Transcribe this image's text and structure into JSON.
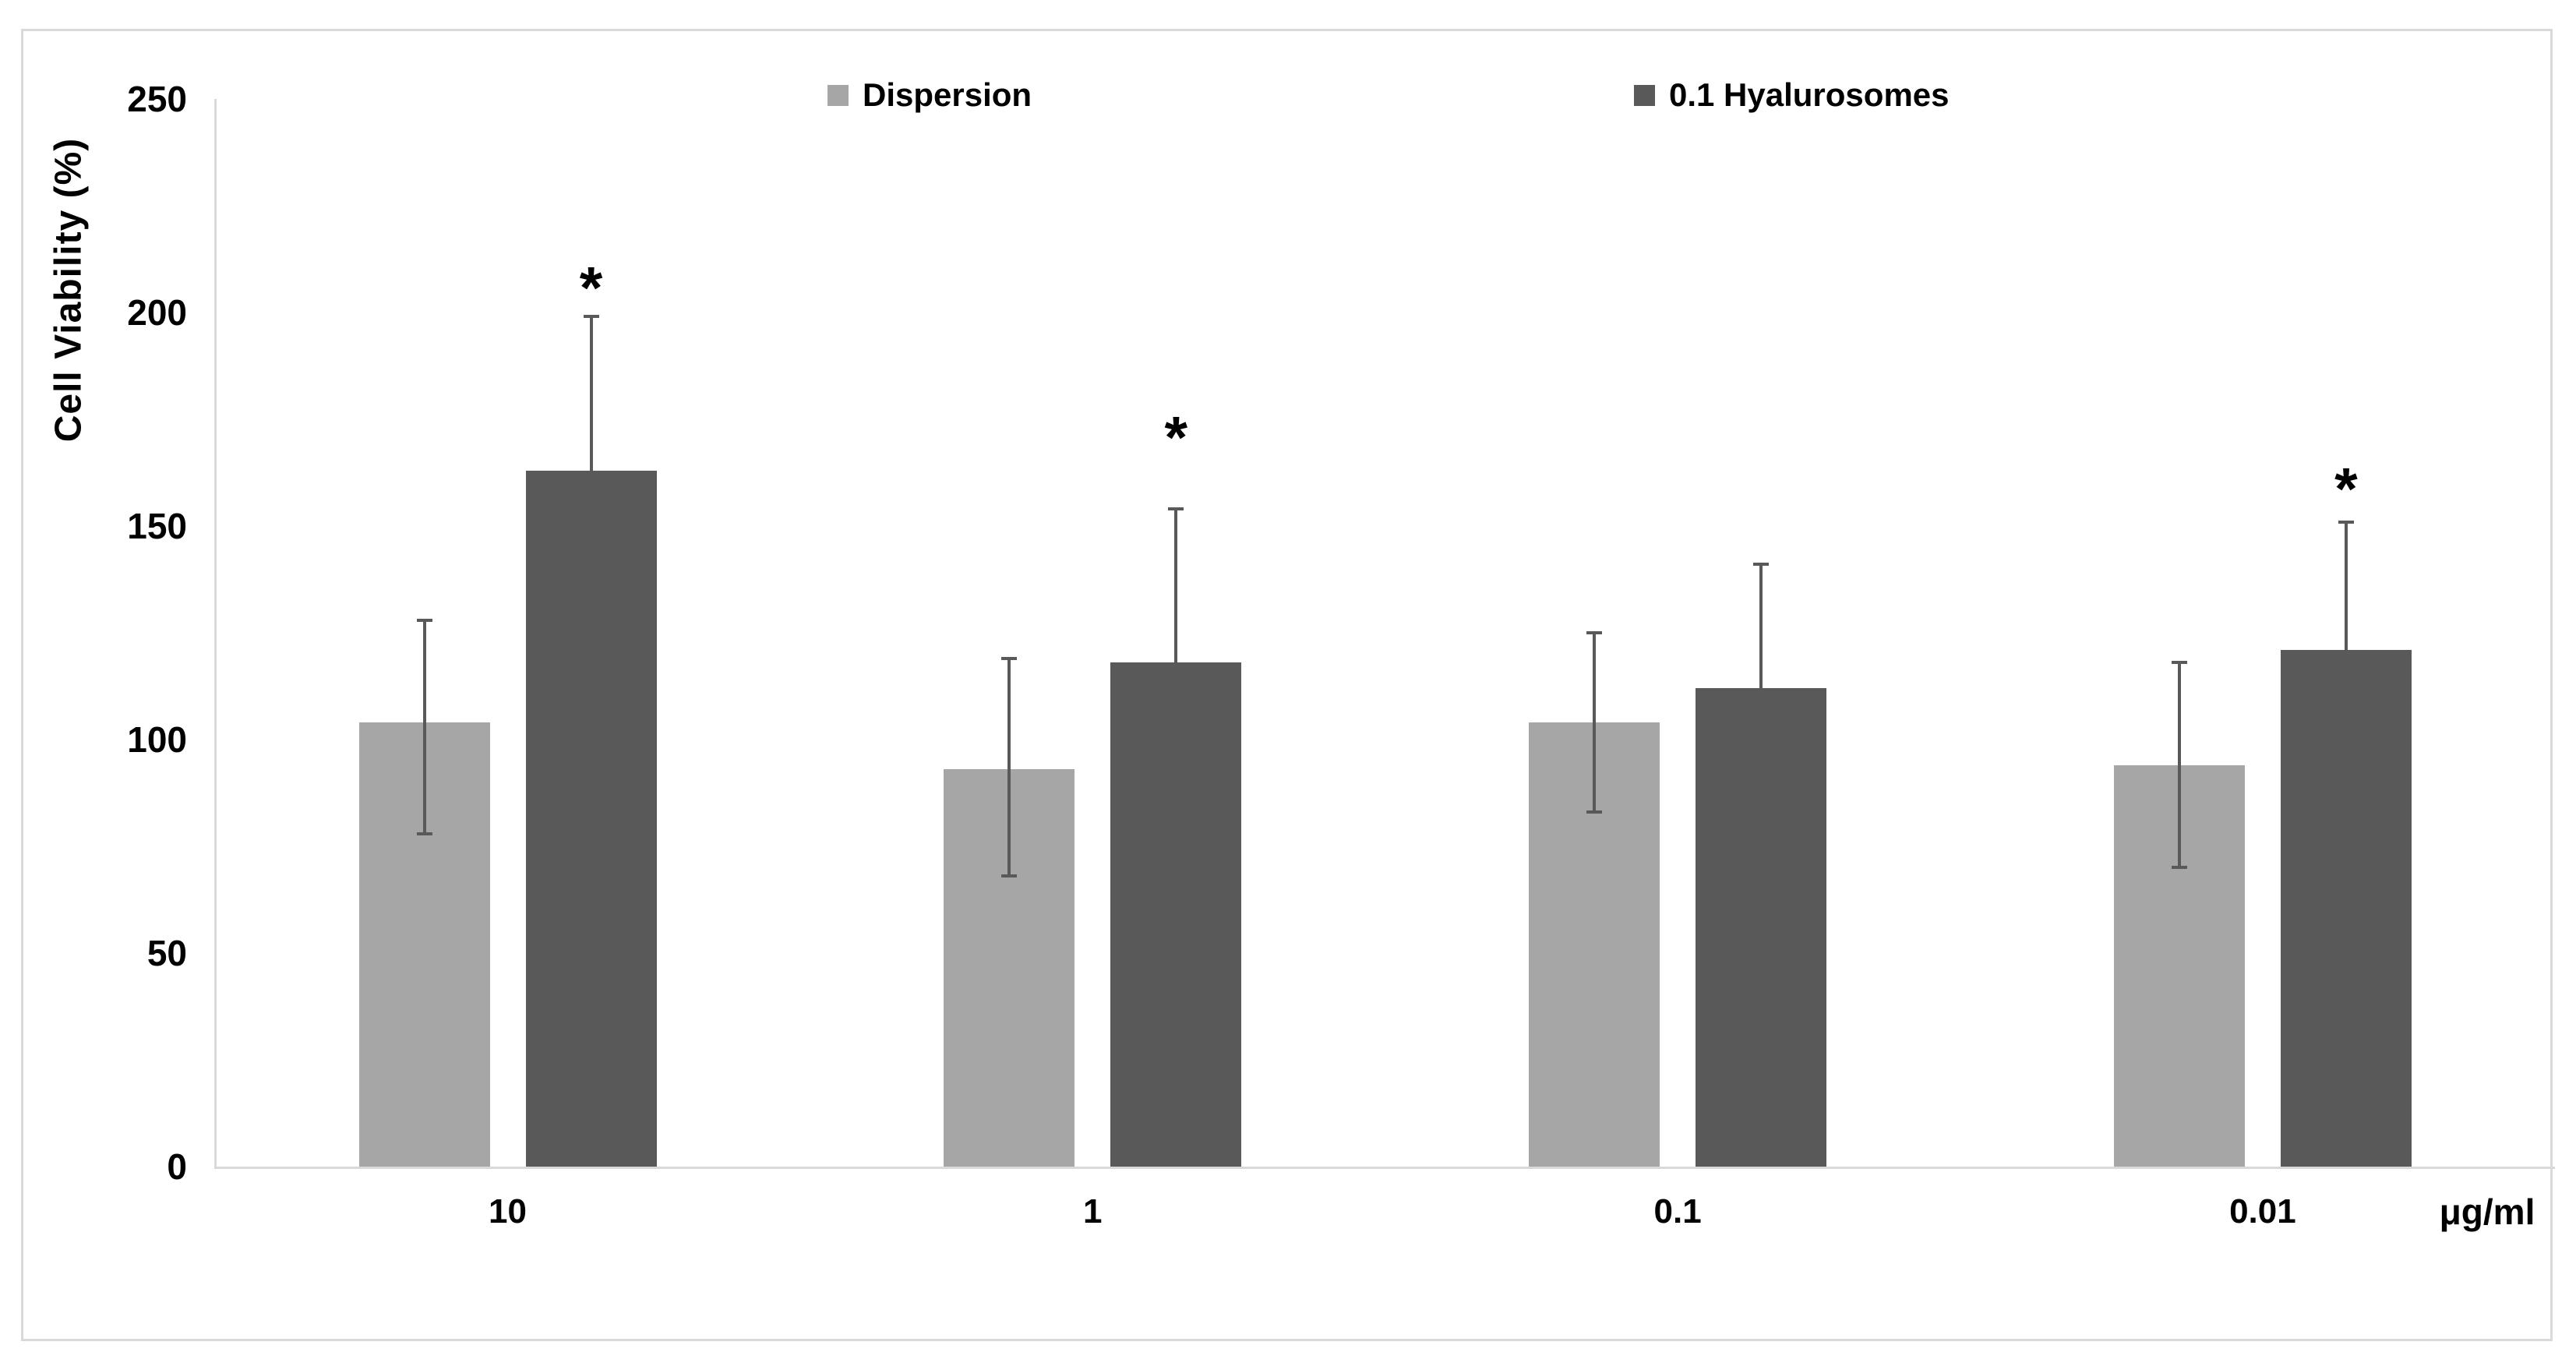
{
  "figure": {
    "background": "#ffffff",
    "border_color": "#d9d9d9",
    "axis_color": "#d9d9d9",
    "text_color": "#000000"
  },
  "legend": {
    "position": "top",
    "items": [
      {
        "label": "Dispersion",
        "color": "#a6a6a6"
      },
      {
        "label": "0.1 Hyalurosomes",
        "color": "#595959"
      }
    ]
  },
  "chart_data": {
    "type": "bar",
    "title": "",
    "ylabel": "Cell Viability (%)",
    "xlabel": "μg/ml",
    "ylim": [
      0,
      250
    ],
    "y_ticks": [
      0,
      50,
      100,
      150,
      200,
      250
    ],
    "grid": false,
    "legend_position": "top",
    "categories": [
      "10",
      "1",
      "0.1",
      "0.01"
    ],
    "series": [
      {
        "name": "Dispersion",
        "color": "#a6a6a6",
        "values": [
          104,
          93,
          104,
          94
        ],
        "error_plus": [
          24,
          26,
          21,
          24
        ],
        "error_minus": [
          26,
          25,
          21,
          24
        ],
        "significant": [
          false,
          false,
          false,
          false
        ],
        "marker_values": [
          null,
          null,
          null,
          null
        ]
      },
      {
        "name": "0.1 Hyalurosomes",
        "color": "#595959",
        "values": [
          163,
          118,
          112,
          121
        ],
        "error_plus": [
          36,
          36,
          29,
          30
        ],
        "error_minus": [
          0,
          0,
          0,
          0
        ],
        "significant": [
          true,
          true,
          false,
          true
        ],
        "marker_values": [
          208,
          173,
          null,
          161
        ]
      }
    ],
    "significance_symbol": "*"
  }
}
